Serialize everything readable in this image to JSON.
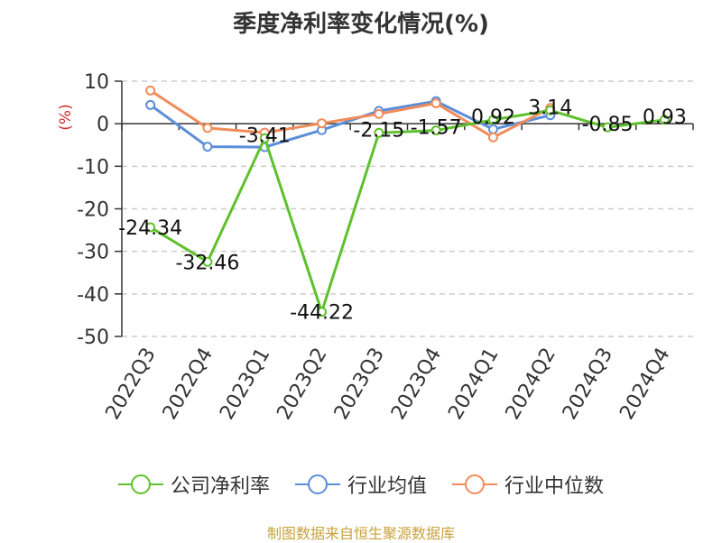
{
  "chart_data": {
    "type": "line",
    "title": "季度净利率变化情况(%)",
    "ylabel": "(%)",
    "xlabel": "",
    "categories": [
      "2022Q3",
      "2022Q4",
      "2023Q1",
      "2023Q2",
      "2023Q3",
      "2023Q4",
      "2024Q1",
      "2024Q2",
      "2024Q3",
      "2024Q4"
    ],
    "ylim": [
      -50,
      10
    ],
    "yticks": [
      10,
      0,
      -10,
      -20,
      -30,
      -40,
      -50
    ],
    "grid": true,
    "legend_position": "bottom",
    "series": [
      {
        "name": "公司净利率",
        "color": "#5ec12c",
        "values": [
          -24.34,
          -32.46,
          -3.41,
          -44.22,
          -2.15,
          -1.57,
          0.92,
          3.14,
          -0.85,
          0.93
        ],
        "labels": [
          "-24.34",
          "-32.46",
          "-3.41",
          "-44.22",
          "-2.15",
          "-1.57",
          "0.92",
          "3.14",
          "-0.85",
          "0.93"
        ]
      },
      {
        "name": "行业均值",
        "color": "#5b8ed9",
        "values": [
          4.4,
          -5.4,
          -5.5,
          -1.5,
          3.0,
          5.3,
          -1.3,
          2.0,
          null,
          null
        ]
      },
      {
        "name": "行业中位数",
        "color": "#f28b5a",
        "values": [
          7.8,
          -1.0,
          -2.1,
          0.1,
          2.3,
          4.8,
          -3.2,
          3.7,
          null,
          null
        ]
      }
    ]
  },
  "source_text": "制图数据来自恒生聚源数据库"
}
